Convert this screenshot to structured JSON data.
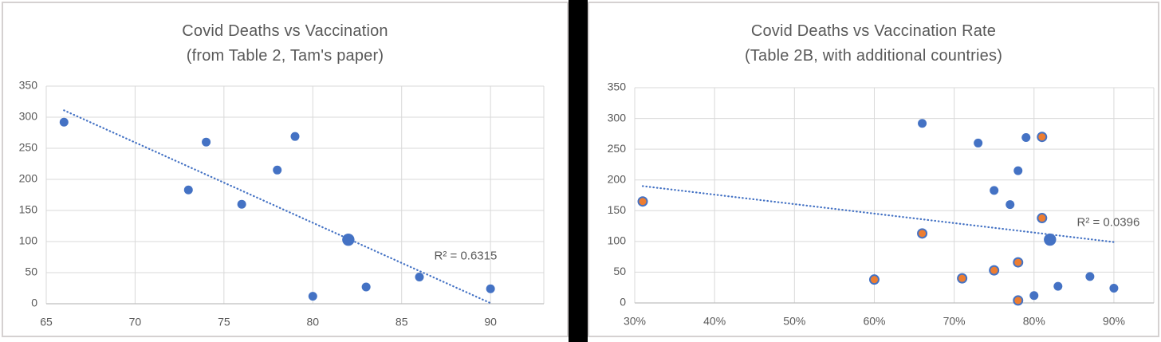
{
  "page": {
    "background": "#ffffff",
    "divider_color": "#000000",
    "panel_border_color": "#d5d1d1"
  },
  "chart_data": [
    {
      "type": "scatter",
      "title": "Covid Deaths vs Vaccination",
      "subtitle": "(from Table 2, Tam's paper)",
      "xlim": [
        65,
        93
      ],
      "ylim": [
        0,
        350
      ],
      "x_ticks": [
        65,
        70,
        75,
        80,
        85,
        90
      ],
      "x_tick_suffix": "",
      "y_ticks": [
        0,
        50,
        100,
        150,
        200,
        250,
        300,
        350
      ],
      "grid": true,
      "legend": "none",
      "grid_color": "#d9d9d9",
      "axis_color": "#bfbfbf",
      "text_color": "#595959",
      "trend_color": "#4472c4",
      "series": [
        {
          "name": "covid-deaths-points",
          "fill": "#4472c4",
          "points": [
            [
              66,
              292
            ],
            [
              73,
              183
            ],
            [
              74,
              260
            ],
            [
              76,
              160
            ],
            [
              78,
              215
            ],
            [
              79,
              269
            ],
            [
              80,
              12
            ],
            [
              82,
              103,
              1.4
            ],
            [
              83,
              27
            ],
            [
              86,
              43
            ],
            [
              90,
              24
            ]
          ]
        }
      ],
      "trendline": {
        "x1": 66,
        "y1": 311,
        "x2": 90,
        "y2": 1,
        "style": "dotted"
      },
      "r2_label": "R² = 0.6315",
      "r2_pos": [
        88.6,
        76
      ]
    },
    {
      "type": "scatter",
      "title": "Covid Deaths vs Vaccination Rate",
      "subtitle": "(Table 2B, with additional countries)",
      "xlim": [
        30,
        95
      ],
      "ylim": [
        0,
        350
      ],
      "x_ticks": [
        30,
        40,
        50,
        60,
        70,
        80,
        90
      ],
      "x_tick_suffix": "%",
      "y_ticks": [
        0,
        50,
        100,
        150,
        200,
        250,
        300,
        350
      ],
      "grid": true,
      "legend": "none",
      "grid_color": "#d9d9d9",
      "axis_color": "#bfbfbf",
      "text_color": "#595959",
      "trend_color": "#4472c4",
      "series": [
        {
          "name": "original-countries-points",
          "fill": "#4472c4",
          "points": [
            [
              66,
              292
            ],
            [
              73,
              260
            ],
            [
              75,
              183
            ],
            [
              77,
              160
            ],
            [
              78,
              215
            ],
            [
              79,
              269
            ],
            [
              80,
              12
            ],
            [
              82,
              103,
              1.4
            ],
            [
              83,
              27
            ],
            [
              87,
              43
            ],
            [
              90,
              24
            ]
          ]
        },
        {
          "name": "additional-countries-points",
          "fill": "#ed7d31",
          "stroke": "#4472c4",
          "points": [
            [
              31,
              165
            ],
            [
              60,
              38
            ],
            [
              66,
              113
            ],
            [
              71,
              40
            ],
            [
              75,
              53
            ],
            [
              78,
              66
            ],
            [
              78,
              4
            ],
            [
              81,
              270
            ],
            [
              81,
              138
            ]
          ]
        }
      ],
      "trendline": {
        "x1": 31,
        "y1": 190,
        "x2": 90,
        "y2": 99,
        "style": "dotted"
      },
      "r2_label": "R² = 0.0396",
      "r2_pos": [
        89.3,
        130
      ]
    }
  ]
}
